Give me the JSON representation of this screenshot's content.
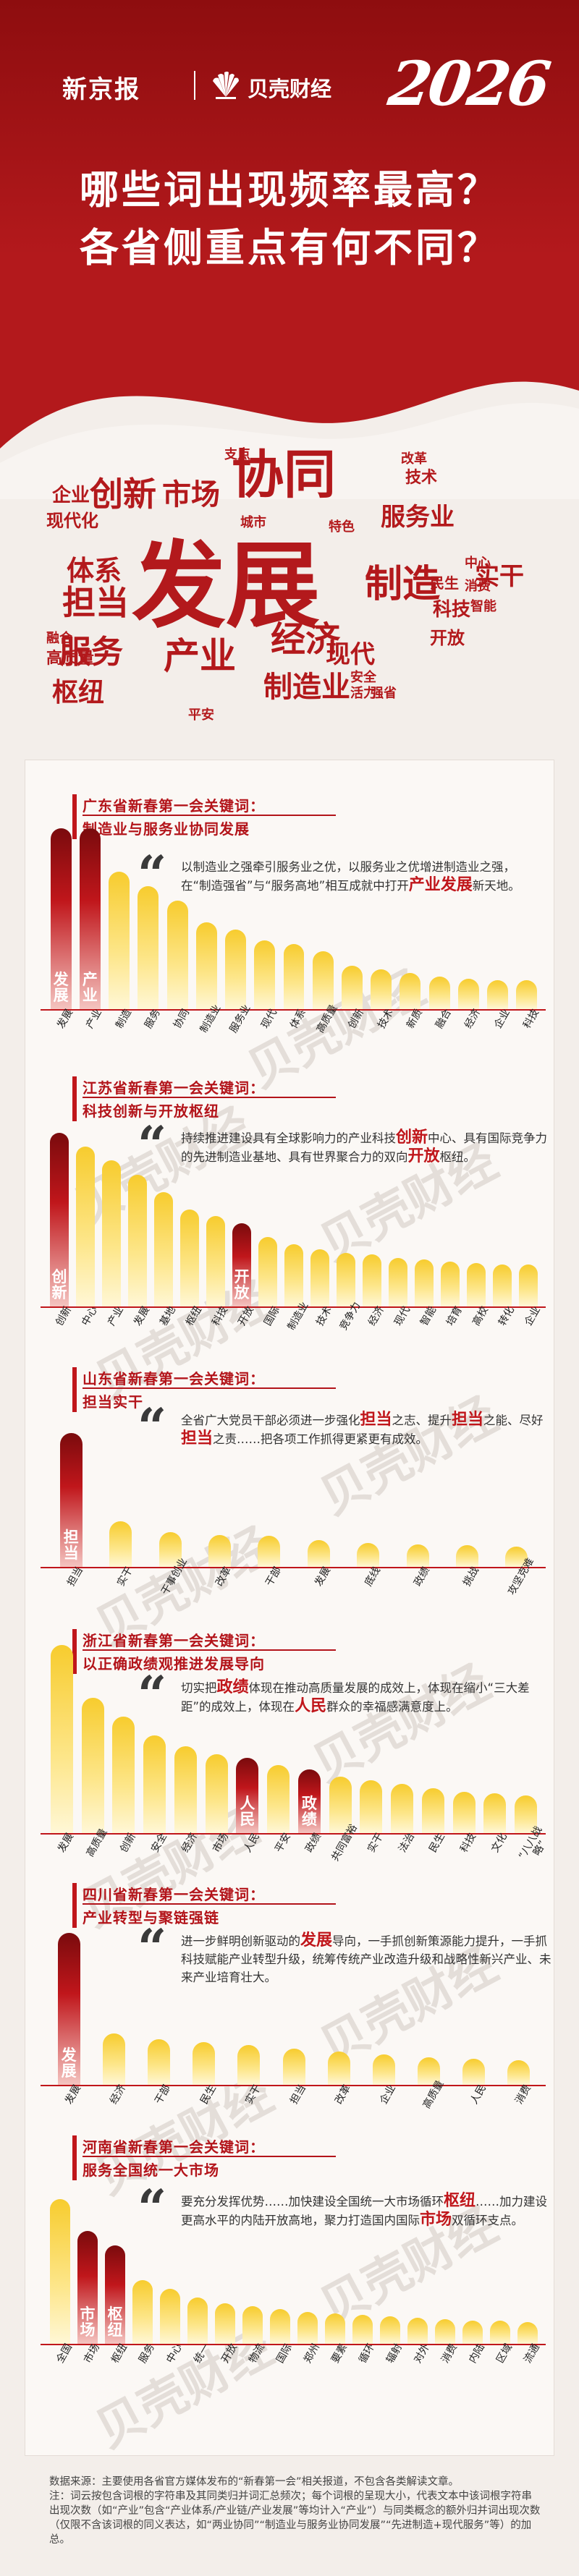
{
  "header": {
    "brand_left": "新京报",
    "brand_right": "贝壳财经",
    "year": "2026",
    "title_line1": "哪些词出现频率最高？",
    "title_line2": "各省侧重点有何不同？"
  },
  "word_cloud": [
    "发展",
    "协同",
    "创新",
    "市场",
    "服务业",
    "担当",
    "制造",
    "服务",
    "产业",
    "经济",
    "现代",
    "枢纽",
    "体系",
    "制造业",
    "实干",
    "企业",
    "科技",
    "开放",
    "技术",
    "现代化",
    "中心",
    "高质量",
    "融合",
    "民生",
    "消费",
    "支点",
    "改革",
    "平安",
    "安全",
    "智能",
    "活力",
    "城市",
    "特色",
    "强省"
  ],
  "watermark": "贝壳财经",
  "sections": [
    {
      "title_line1": "广东省新春第一会关键词：",
      "title_line2": "制造业与服务业协同发展",
      "quote_parts": [
        {
          "t": "以制造业之强牵引服务业之优，以服务业之优增进制造业之强，在“制造强省”与“服务高地”相互成就中打开"
        },
        {
          "t": "产业发展",
          "hl": true
        },
        {
          "t": "新天地。"
        }
      ],
      "bars": [
        {
          "label": "发展",
          "v": 100,
          "hl": true
        },
        {
          "label": "产业",
          "v": 100,
          "hl": true
        },
        {
          "label": "制造",
          "v": 76
        },
        {
          "label": "服务",
          "v": 68
        },
        {
          "label": "协同",
          "v": 60
        },
        {
          "label": "制造业",
          "v": 48
        },
        {
          "label": "服务业",
          "v": 44
        },
        {
          "label": "现代",
          "v": 38
        },
        {
          "label": "体系",
          "v": 36
        },
        {
          "label": "高质量",
          "v": 32
        },
        {
          "label": "创新",
          "v": 24
        },
        {
          "label": "技术",
          "v": 22
        },
        {
          "label": "新质",
          "v": 20
        },
        {
          "label": "融合",
          "v": 18
        },
        {
          "label": "经济",
          "v": 17
        },
        {
          "label": "企业",
          "v": 16
        },
        {
          "label": "科技",
          "v": 16
        }
      ]
    },
    {
      "title_line1": "江苏省新春第一会关键词：",
      "title_line2": "科技创新与开放枢纽",
      "quote_parts": [
        {
          "t": "持续推进建设具有全球影响力的产业科技"
        },
        {
          "t": "创新",
          "hl": true
        },
        {
          "t": "中心、具有国际竞争力的先进制造业基地、具有世界聚合力的双向"
        },
        {
          "t": "开放",
          "hl": true
        },
        {
          "t": "枢纽。"
        }
      ],
      "bars": [
        {
          "label": "创新",
          "v": 100,
          "hl": true
        },
        {
          "label": "中心",
          "v": 92
        },
        {
          "label": "产业",
          "v": 84
        },
        {
          "label": "发展",
          "v": 76
        },
        {
          "label": "基地",
          "v": 66
        },
        {
          "label": "枢纽",
          "v": 56
        },
        {
          "label": "科技",
          "v": 52
        },
        {
          "label": "开放",
          "v": 48,
          "hl": true
        },
        {
          "label": "国际",
          "v": 40
        },
        {
          "label": "制造业",
          "v": 36
        },
        {
          "label": "技术",
          "v": 33
        },
        {
          "label": "竞争力",
          "v": 31
        },
        {
          "label": "经济",
          "v": 30
        },
        {
          "label": "现代",
          "v": 28
        },
        {
          "label": "智能",
          "v": 27
        },
        {
          "label": "培育",
          "v": 26
        },
        {
          "label": "高校",
          "v": 25
        },
        {
          "label": "转化",
          "v": 24
        },
        {
          "label": "企业",
          "v": 24
        }
      ]
    },
    {
      "title_line1": "山东省新春第一会关键词：",
      "title_line2": "担当实干",
      "quote_parts": [
        {
          "t": "全省广大党员干部必须进一步强化"
        },
        {
          "t": "担当",
          "hl": true
        },
        {
          "t": "之志、提升"
        },
        {
          "t": "担当",
          "hl": true
        },
        {
          "t": "之能、尽好"
        },
        {
          "t": "担当",
          "hl": true
        },
        {
          "t": "之责……把各项工作抓得更紧更有成效。"
        }
      ],
      "bars": [
        {
          "label": "担当",
          "v": 100,
          "hl": true
        },
        {
          "label": "实干",
          "v": 34
        },
        {
          "label": "干事创业",
          "v": 26
        },
        {
          "label": "改革",
          "v": 24
        },
        {
          "label": "干部",
          "v": 23
        },
        {
          "label": "发展",
          "v": 20
        },
        {
          "label": "底线",
          "v": 18
        },
        {
          "label": "政绩",
          "v": 17
        },
        {
          "label": "挑战",
          "v": 16
        },
        {
          "label": "攻坚克难",
          "v": 15
        }
      ]
    },
    {
      "title_line1": "浙江省新春第一会关键词：",
      "title_line2": "以正确政绩观推进发展导向",
      "quote_parts": [
        {
          "t": "切实把"
        },
        {
          "t": "政绩",
          "hl": true
        },
        {
          "t": "体现在推动高质量发展的成效上，体现在缩小“三大差距”的成效上，体现在"
        },
        {
          "t": "人民",
          "hl": true
        },
        {
          "t": "群众的幸福感满意度上。"
        }
      ],
      "bars": [
        {
          "label": "发展",
          "v": 100
        },
        {
          "label": "高质量",
          "v": 72
        },
        {
          "label": "创新",
          "v": 62
        },
        {
          "label": "安全",
          "v": 52
        },
        {
          "label": "经济",
          "v": 46
        },
        {
          "label": "市场",
          "v": 42
        },
        {
          "label": "人民",
          "v": 40,
          "hl": true
        },
        {
          "label": "平安",
          "v": 36
        },
        {
          "label": "政绩",
          "v": 34,
          "hl": true
        },
        {
          "label": "共同富裕",
          "v": 30
        },
        {
          "label": "实干",
          "v": 28
        },
        {
          "label": "法治",
          "v": 26
        },
        {
          "label": "民生",
          "v": 24
        },
        {
          "label": "科技",
          "v": 22
        },
        {
          "label": "文化",
          "v": 21
        },
        {
          "label": "“八八战略”",
          "v": 20
        }
      ]
    },
    {
      "title_line1": "四川省新春第一会关键词：",
      "title_line2": "产业转型与聚链强链",
      "quote_parts": [
        {
          "t": "进一步鲜明创新驱动的"
        },
        {
          "t": "发展",
          "hl": true
        },
        {
          "t": "导向，一手抓创新策源能力提升，一手抓科技赋能产业转型升级，统筹传统产业改造升级和战略性新兴产业、未来产业培育壮大。"
        }
      ],
      "bars": [
        {
          "label": "发展",
          "v": 100,
          "hl": true
        },
        {
          "label": "经济",
          "v": 34
        },
        {
          "label": "干部",
          "v": 30
        },
        {
          "label": "民生",
          "v": 28
        },
        {
          "label": "实干",
          "v": 26
        },
        {
          "label": "担当",
          "v": 24
        },
        {
          "label": "改革",
          "v": 22
        },
        {
          "label": "企业",
          "v": 20
        },
        {
          "label": "高质量",
          "v": 18
        },
        {
          "label": "人民",
          "v": 17
        },
        {
          "label": "消费",
          "v": 16
        }
      ]
    },
    {
      "title_line1": "河南省新春第一会关键词：",
      "title_line2": "服务全国统一大市场",
      "quote_parts": [
        {
          "t": "要充分发挥优势……加快建设全国统一大市场循环"
        },
        {
          "t": "枢纽",
          "hl": true
        },
        {
          "t": "……加力建设更高水平的内陆开放高地，聚力打造国内国际"
        },
        {
          "t": "市场",
          "hl": true
        },
        {
          "t": "双循环支点。"
        }
      ],
      "bars": [
        {
          "label": "全国",
          "v": 100
        },
        {
          "label": "市场",
          "v": 78,
          "hl": true
        },
        {
          "label": "枢纽",
          "v": 68,
          "hl": true
        },
        {
          "label": "服务",
          "v": 44
        },
        {
          "label": "中心",
          "v": 38
        },
        {
          "label": "统一",
          "v": 32
        },
        {
          "label": "开放",
          "v": 28
        },
        {
          "label": "物流",
          "v": 26
        },
        {
          "label": "国际",
          "v": 24
        },
        {
          "label": "郑州",
          "v": 22
        },
        {
          "label": "要素",
          "v": 21
        },
        {
          "label": "循环",
          "v": 20
        },
        {
          "label": "辐射",
          "v": 19
        },
        {
          "label": "对外",
          "v": 18
        },
        {
          "label": "消费",
          "v": 17
        },
        {
          "label": "内陆",
          "v": 16
        },
        {
          "label": "区域",
          "v": 16
        },
        {
          "label": "流通",
          "v": 15
        }
      ]
    }
  ],
  "footer": {
    "line1": "数据来源：主要使用各省官方媒体发布的“新春第一会”相关报道，不包含各类解读文章。",
    "line2": "注：词云按包含词根的字符串及其同类归并词汇总频次；每个词根的呈现大小，代表文本中该词根字符串出现次数（如“产业”包含“产业体系/产业链/产业发展”等均计入“产业”）与同类概念的额外归并词出现次数（仅限不含该词根的同义表达，如“两业协同”“制造业与服务业协同发展”“先进制造+现代服务”等）的加总。"
  }
}
